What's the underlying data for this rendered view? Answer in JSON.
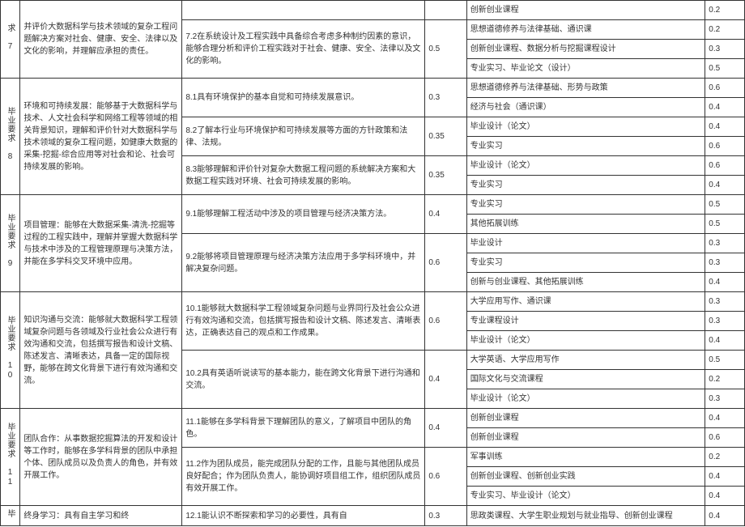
{
  "rows": {
    "r7_idx": "求 7",
    "r7_a": "并评价大数据科学与技术领域的复杂工程问题解决方案对社会、健康、安全、法律以及文化的影响，并理解应承担的责任。",
    "r7_b1_d": "创新创业课程",
    "r7_b1_e": "0.2",
    "r7_b2": "7.2在系统设计及工程实践中具备综合考虑多种制约因素的意识，能够合理分析和评价工程实践对于社会、健康、安全、法律以及文化的影响。",
    "r7_b2_c": "0.5",
    "r7_b2_d1": "思想道德修养与法律基础、通识课",
    "r7_b2_e1": "0.2",
    "r7_b2_d2": "创新创业课程、数据分析与挖掘课程设计",
    "r7_b2_e2": "0.3",
    "r7_b2_d3": "专业实习、毕业论文（设计）",
    "r7_b2_e3": "0.5",
    "r8_idx": "毕业要求 8",
    "r8_a": "环境和可持续发展：能够基于大数据科学与技术、人文社会科学和网络工程等领域的相关背景知识，理解和评价针对大数据科学与技术领域的复杂工程问题，如健康大数据的采集-挖掘-综合应用等对社会和论、社会可持续发展的影响。",
    "r8_b1": "8.1具有环境保护的基本自觉和可持续发展意识。",
    "r8_b1_c": "0.3",
    "r8_b1_d1": "思想道德修养与法律基础、形势与政策",
    "r8_b1_e1": "0.6",
    "r8_b1_d2": "经济与社会（通识课）",
    "r8_b1_e2": "0.4",
    "r8_b2": "8.2了解本行业与环境保护和可持续发展等方面的方针政策和法律、法规。",
    "r8_b2_c": "0.35",
    "r8_b2_d1": "毕业设计（论文）",
    "r8_b2_e1": "0.4",
    "r8_b2_d2": "专业实习",
    "r8_b2_e2": "0.6",
    "r8_b3": "8.3能够理解和评价针对复杂大数据工程问题的系统解决方案和大数据工程实践对环境、社会可持续发展的影响。",
    "r8_b3_c": "0.35",
    "r8_b3_d1": "毕业设计（论文）",
    "r8_b3_e1": "0.6",
    "r8_b3_d2": "专业实习",
    "r8_b3_e2": "0.4",
    "r9_idx": "毕业要求 9",
    "r9_a": "项目管理：能够在大数据采集-清洗-挖掘等过程的工程实践中，理解并掌握大数据科学与技术中涉及的工程管理原理与决策方法，并能在多学科交叉环境中应用。",
    "r9_b1": "9.1能够理解工程活动中涉及的项目管理与经济决策方法。",
    "r9_b1_c": "0.4",
    "r9_b1_d1": "专业实习",
    "r9_b1_e1": "0.5",
    "r9_b1_d2": "其他拓展训练",
    "r9_b1_e2": "0.5",
    "r9_b2": "9.2能够将项目管理原理与经济决策方法应用于多学科环境中，并解决复杂问题。",
    "r9_b2_c": "0.6",
    "r9_b2_d1": "毕业设计",
    "r9_b2_e1": "0.3",
    "r9_b2_d2": "专业实习",
    "r9_b2_e2": "0.3",
    "r9_b2_d3": "创新与创业课程、其他拓展训练",
    "r9_b2_e3": "0.4",
    "r10_idx": "毕业要求 10",
    "r10_a": "知识沟通与交流：能够就大数据科学工程领域复杂问题与各领域及行业社会公众进行有效沟通和交流，包括撰写报告和设计文稿、陈述发言、清晰表达，具备一定的国际视野，能够在跨文化背景下进行有效沟通和交流。",
    "r10_b1": "10.1能够就大数据科学工程领域复杂问题与业界同行及社会公众进行有效沟通和交流，包括撰写报告和设计文稿、陈述发言、清晰表达，正确表达自己的观点和工作成果。",
    "r10_b1_c": "0.6",
    "r10_b1_d1": "大学应用写作、通识课",
    "r10_b1_e1": "0.3",
    "r10_b1_d2": "专业课程设计",
    "r10_b1_e2": "0.3",
    "r10_b1_d3": "毕业设计（论文）",
    "r10_b1_e3": "0.4",
    "r10_b2": "10.2具有英语听说读写的基本能力，能在跨文化背景下进行沟通和交流。",
    "r10_b2_c": "0.4",
    "r10_b2_d1": "大学英语、大学应用写作",
    "r10_b2_e1": "0.5",
    "r10_b2_d2": "国际文化与交流课程",
    "r10_b2_e2": "0.2",
    "r10_b2_d3": "毕业设计（论文）",
    "r10_b2_e3": "0.3",
    "r11_idx": "毕业要求 11",
    "r11_a": "团队合作：从事数据挖掘算法的开发和设计等工作时，能够在多学科背景的团队中承担个体、团队成员以及负责人的角色，并有效开展工作。",
    "r11_b1": "11.1能够在多学科背景下理解团队的意义，了解项目中团队的角色。",
    "r11_b1_c": "0.4",
    "r11_b1_d1": "创新创业课程",
    "r11_b1_e1": "0.4",
    "r11_b1_d2": "创新创业课程",
    "r11_b1_e2": "0.6",
    "r11_b2": "11.2作为团队成员，能完成团队分配的工作，且能与其他团队成员良好配合；作为团队负责人，能协调好项目组工作，组织团队成员有效开展工作。",
    "r11_b2_c": "0.6",
    "r11_b2_d1": "军事训练",
    "r11_b2_e1": "0.2",
    "r11_b2_d2": "创新创业课程、创新创业实践",
    "r11_b2_e2": "0.4",
    "r11_b2_d3": "专业实习、毕业设计（论文）",
    "r11_b2_e3": "0.4",
    "r12_idx": "毕",
    "r12_a": "终身学习：具有自主学习和终",
    "r12_b": "12.1能认识不断探索和学习的必要性，具有自",
    "r12_b_c": "0.3",
    "r12_d": "思政类课程、大学生职业规划与就业指导、创新创业课程",
    "r12_e": "0.4"
  }
}
